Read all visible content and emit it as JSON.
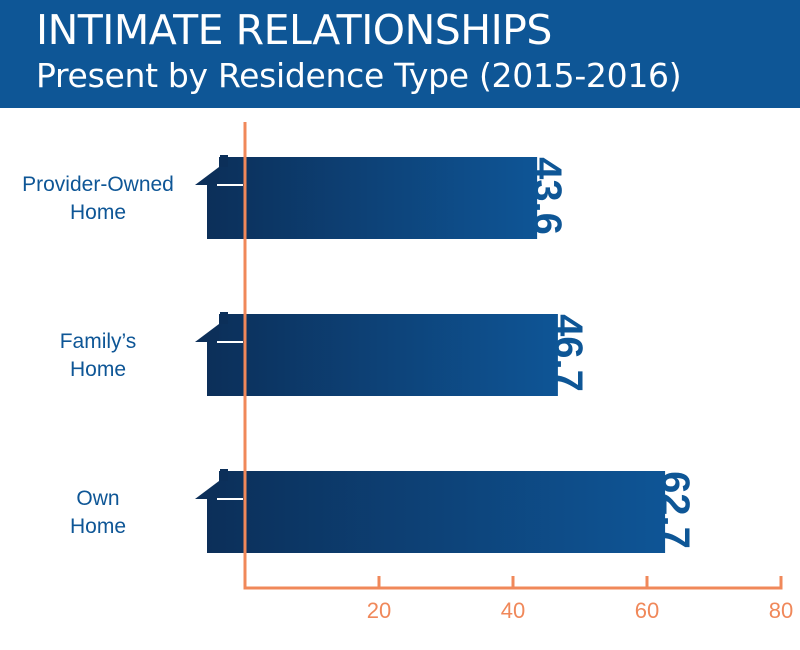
{
  "header": {
    "title": "INTIMATE RELATIONSHIPS",
    "subtitle": "Present by Residence Type (2015-2016)"
  },
  "colors": {
    "header_bg": "#0e5696",
    "bar_dark": "#0c2f59",
    "bar_light": "#0e5596",
    "axis": "#f0885a",
    "label_text": "#0e5696"
  },
  "chart_data": {
    "type": "bar",
    "orientation": "horizontal",
    "bar_shape": "house-icon",
    "categories": [
      "Provider-Owned\nHome",
      "Family’s\nHome",
      "Own\nHome"
    ],
    "values": [
      43.6,
      46.7,
      62.7
    ],
    "data_labels": [
      "43.6",
      "46.7",
      "62.7"
    ],
    "xlim": [
      0,
      80
    ],
    "xticks": [
      20,
      40,
      60,
      80
    ],
    "grid": false,
    "legend": "none"
  }
}
